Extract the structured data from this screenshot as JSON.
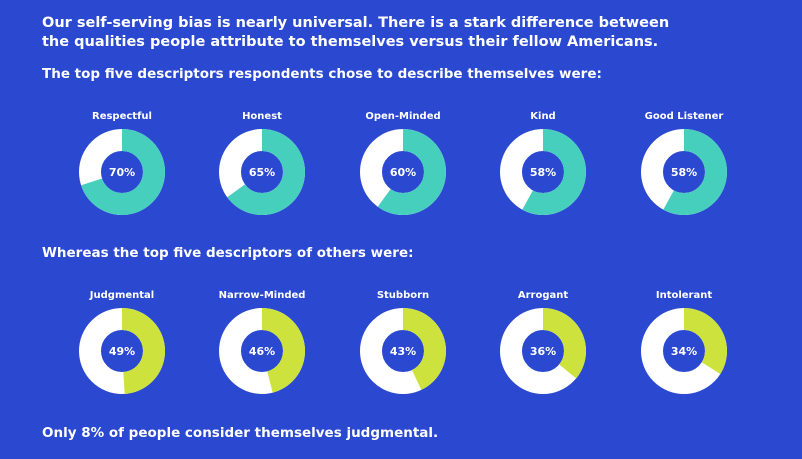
{
  "headline": "Our self-serving bias is nearly universal. There is a stark difference between the qualities people attribute to themselves versus their fellow Americans.",
  "footer": "Only 8% of people consider themselves judgmental.",
  "colors": {
    "background": "#2a48d0",
    "self": "#47cfbd",
    "others": "#cde23c",
    "remainder": "#ffffff"
  },
  "chart_data": [
    {
      "type": "pie",
      "title": "The top five descriptors respondents chose to describe themselves were:",
      "categories": [
        "Respectful",
        "Honest",
        "Open-Minded",
        "Kind",
        "Good Listener"
      ],
      "values": [
        70,
        65,
        60,
        58,
        58
      ],
      "labels": [
        "70%",
        "65%",
        "60%",
        "58%",
        "58%"
      ],
      "unit": "%"
    },
    {
      "type": "pie",
      "title": "Whereas the top five descriptors of others were:",
      "categories": [
        "Judgmental",
        "Narrow-Minded",
        "Stubborn",
        "Arrogant",
        "Intolerant"
      ],
      "values": [
        49,
        46,
        43,
        36,
        34
      ],
      "labels": [
        "49%",
        "46%",
        "43%",
        "36%",
        "34%"
      ],
      "unit": "%"
    }
  ]
}
